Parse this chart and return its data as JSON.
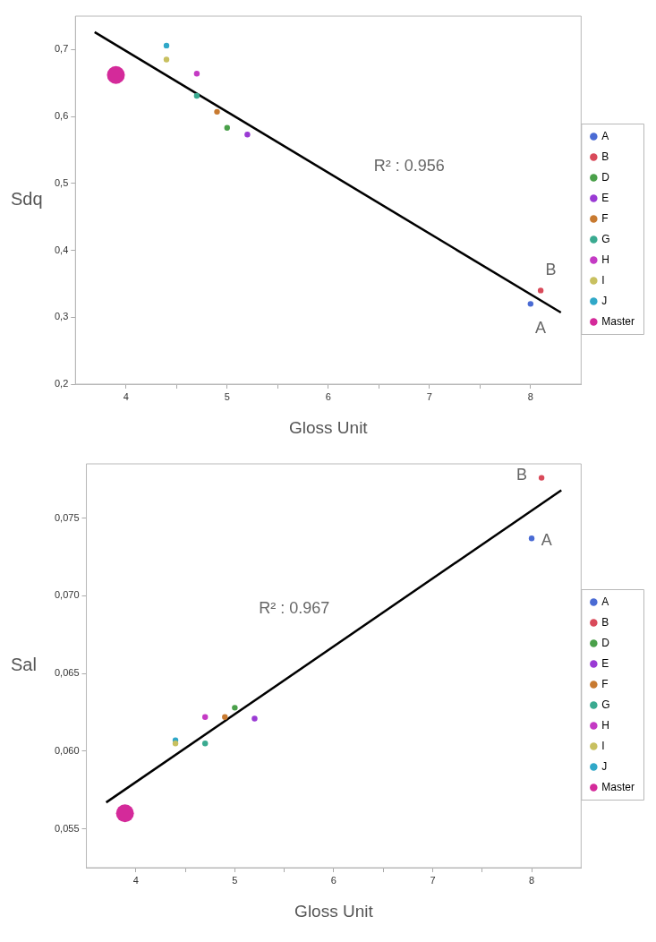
{
  "chart_data": [
    {
      "type": "scatter",
      "xlabel": "Gloss Unit",
      "ylabel": "Sdq",
      "legend": "right",
      "grid": false,
      "xlim": [
        3.5,
        8.5
      ],
      "xticks": [
        4,
        {
          "value": 4.5,
          "label": null
        },
        5,
        {
          "value": 5.5,
          "label": null
        },
        6,
        {
          "value": 6.5,
          "label": null
        },
        7,
        {
          "value": 7.5,
          "label": null
        },
        8
      ],
      "ylim": [
        0.2,
        0.75
      ],
      "yticks": [
        {
          "value": 0.2,
          "label": "0,2"
        },
        {
          "value": 0.3,
          "label": "0,3"
        },
        {
          "value": 0.4,
          "label": "0,4"
        },
        {
          "value": 0.5,
          "label": "0,5"
        },
        {
          "value": 0.6,
          "label": "0,6"
        },
        {
          "value": 0.7,
          "label": "0,7"
        }
      ],
      "series": [
        {
          "name": "A",
          "color": "#4a6bd4",
          "x": [
            8.0
          ],
          "values": [
            0.32
          ]
        },
        {
          "name": "B",
          "color": "#d94a5a",
          "x": [
            8.1
          ],
          "values": [
            0.34
          ]
        },
        {
          "name": "D",
          "color": "#4aa04a",
          "x": [
            5.0
          ],
          "values": [
            0.583
          ]
        },
        {
          "name": "E",
          "color": "#9a3ad4",
          "x": [
            5.2
          ],
          "values": [
            0.573
          ]
        },
        {
          "name": "F",
          "color": "#c87a30",
          "x": [
            4.9
          ],
          "values": [
            0.607
          ]
        },
        {
          "name": "G",
          "color": "#3aaa90",
          "x": [
            4.7
          ],
          "values": [
            0.631
          ]
        },
        {
          "name": "H",
          "color": "#c43ac4",
          "x": [
            4.7
          ],
          "values": [
            0.664
          ]
        },
        {
          "name": "I",
          "color": "#c8c060",
          "x": [
            4.4
          ],
          "values": [
            0.685
          ]
        },
        {
          "name": "J",
          "color": "#30a8c8",
          "x": [
            4.4
          ],
          "values": [
            0.706
          ]
        },
        {
          "name": "Master",
          "type": "bubble",
          "color": "#d42a9a",
          "x": [
            3.9
          ],
          "values": [
            0.662
          ],
          "sizes": [
            1
          ]
        },
        {
          "type": "line",
          "color": "#000000",
          "x": [
            3.69,
            8.3
          ],
          "values": [
            0.726,
            0.307
          ]
        }
      ],
      "annotations": [
        "R² : 0.956",
        "B",
        "A"
      ]
    },
    {
      "type": "scatter",
      "xlabel": "Gloss Unit",
      "ylabel": "Sal",
      "legend": "right",
      "grid": false,
      "xlim": [
        3.5,
        8.5
      ],
      "xticks": [
        4,
        {
          "value": 4.5,
          "label": null
        },
        5,
        {
          "value": 5.5,
          "label": null
        },
        6,
        {
          "value": 6.5,
          "label": null
        },
        7,
        {
          "value": 7.5,
          "label": null
        },
        8
      ],
      "ylim": [
        0.0525,
        0.0785
      ],
      "yticks": [
        {
          "value": 0.055,
          "label": "0,055"
        },
        {
          "value": 0.06,
          "label": "0,060"
        },
        {
          "value": 0.065,
          "label": "0,065"
        },
        {
          "value": 0.07,
          "label": "0,070"
        },
        {
          "value": 0.075,
          "label": "0,075"
        }
      ],
      "series": [
        {
          "name": "A",
          "color": "#4a6bd4",
          "x": [
            8.0
          ],
          "values": [
            0.0737
          ]
        },
        {
          "name": "B",
          "color": "#d94a5a",
          "x": [
            8.1
          ],
          "values": [
            0.0776
          ]
        },
        {
          "name": "D",
          "color": "#4aa04a",
          "x": [
            5.0
          ],
          "values": [
            0.0628
          ]
        },
        {
          "name": "E",
          "color": "#9a3ad4",
          "x": [
            5.2
          ],
          "values": [
            0.0621
          ]
        },
        {
          "name": "F",
          "color": "#c87a30",
          "x": [
            4.9
          ],
          "values": [
            0.0622
          ]
        },
        {
          "name": "G",
          "color": "#3aaa90",
          "x": [
            4.7
          ],
          "values": [
            0.0605
          ]
        },
        {
          "name": "H",
          "color": "#c43ac4",
          "x": [
            4.7
          ],
          "values": [
            0.0622
          ]
        },
        {
          "name": "I",
          "color": "#c8c060",
          "x": [
            4.4
          ],
          "values": [
            0.0605
          ]
        },
        {
          "name": "J",
          "color": "#30a8c8",
          "x": [
            4.4
          ],
          "values": [
            0.0607
          ]
        },
        {
          "name": "Master",
          "type": "bubble",
          "color": "#d42a9a",
          "x": [
            3.89
          ],
          "values": [
            0.056
          ],
          "sizes": [
            1
          ]
        },
        {
          "type": "line",
          "color": "#000000",
          "x": [
            3.7,
            8.3
          ],
          "values": [
            0.0567,
            0.0768
          ]
        }
      ],
      "annotations": [
        "R² : 0.967",
        "B",
        "A"
      ]
    }
  ]
}
